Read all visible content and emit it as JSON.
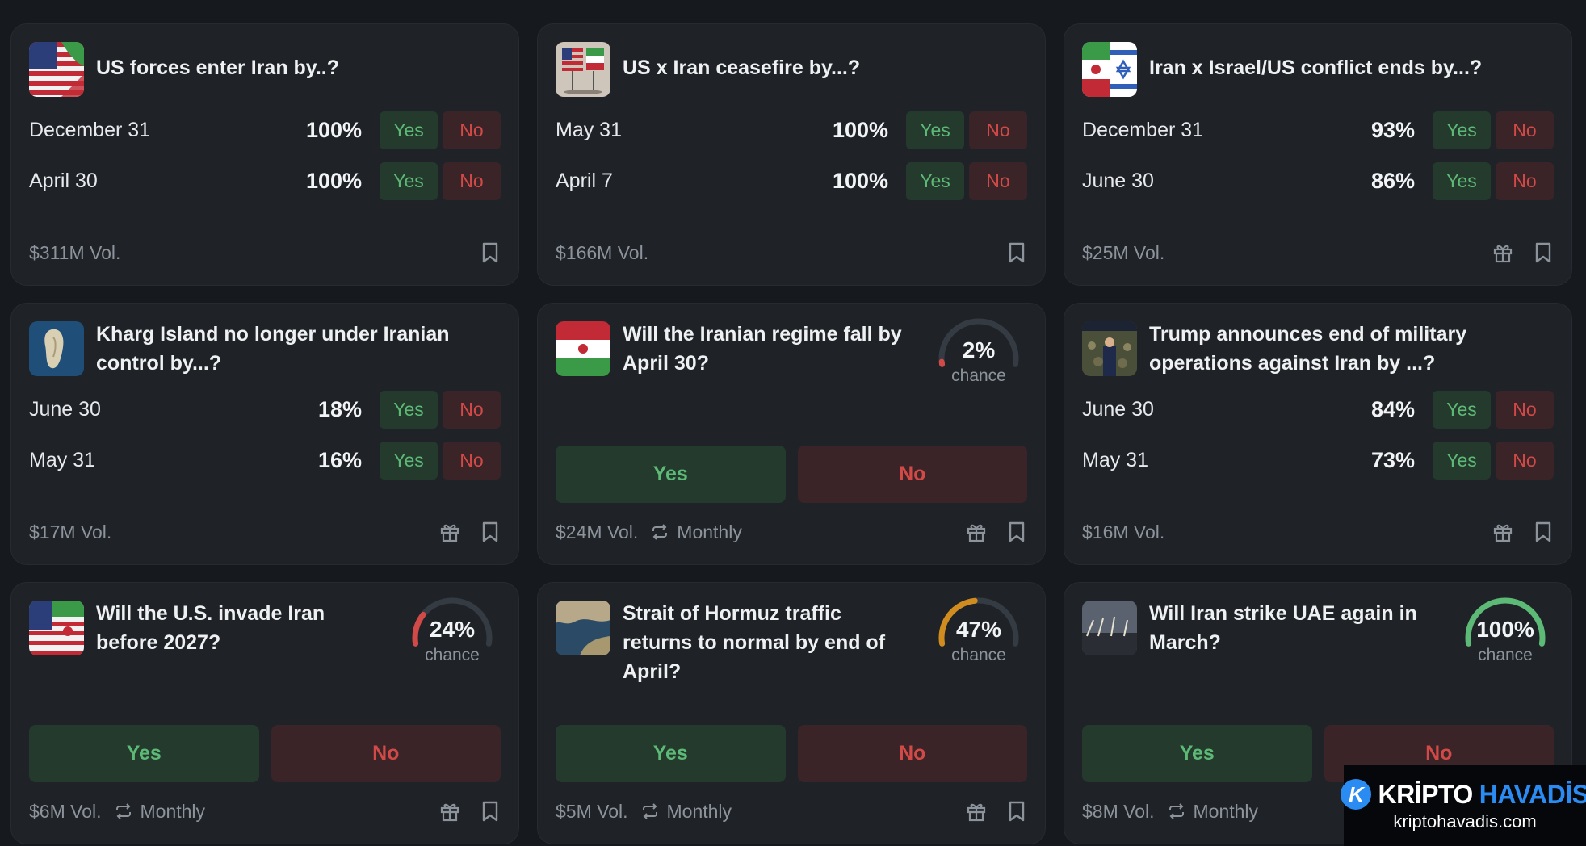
{
  "labels": {
    "yes": "Yes",
    "no": "No",
    "chance": "chance",
    "monthly": "Monthly"
  },
  "cards": [
    {
      "title": "US forces enter Iran by..?",
      "rows": [
        {
          "label": "December 31",
          "pct": "100%"
        },
        {
          "label": "April 30",
          "pct": "100%"
        }
      ],
      "volume": "$311M Vol."
    },
    {
      "title": "US x Iran ceasefire by...?",
      "rows": [
        {
          "label": "May 31",
          "pct": "100%"
        },
        {
          "label": "April 7",
          "pct": "100%"
        }
      ],
      "volume": "$166M Vol."
    },
    {
      "title": "Iran x Israel/US conflict ends by...?",
      "rows": [
        {
          "label": "December 31",
          "pct": "93%"
        },
        {
          "label": "June 30",
          "pct": "86%"
        }
      ],
      "volume": "$25M Vol."
    },
    {
      "title": "Kharg Island no longer under Iranian control by...?",
      "rows": [
        {
          "label": "June 30",
          "pct": "18%"
        },
        {
          "label": "May 31",
          "pct": "16%"
        }
      ],
      "volume": "$17M Vol."
    },
    {
      "title": "Will the Iranian regime fall by April 30?",
      "chance": "2%",
      "chance_value": 0.02,
      "gauge_color": "#d24a47",
      "volume": "$24M Vol."
    },
    {
      "title": "Trump announces end of military operations against Iran by ...?",
      "rows": [
        {
          "label": "June 30",
          "pct": "84%"
        },
        {
          "label": "May 31",
          "pct": "73%"
        }
      ],
      "volume": "$16M Vol."
    },
    {
      "title": "Will the U.S. invade Iran before 2027?",
      "chance": "24%",
      "chance_value": 0.24,
      "gauge_color": "#d24a47",
      "volume": "$6M Vol."
    },
    {
      "title": "Strait of Hormuz traffic returns to normal by end of April?",
      "chance": "47%",
      "chance_value": 0.47,
      "gauge_color": "#d08c1e",
      "volume": "$5M Vol."
    },
    {
      "title": "Will Iran strike UAE again in March?",
      "chance": "100%",
      "chance_value": 1.0,
      "gauge_color": "#5db976",
      "volume": "$8M Vol."
    }
  ],
  "watermark": {
    "brand1": "KRİPTO",
    "brand2": "HAVADİS",
    "logo_letter": "K",
    "url": "kriptohavadis.com"
  },
  "colors": {
    "yes": "#5db976",
    "no": "#d24a47",
    "gauge_track": "#353b43"
  }
}
